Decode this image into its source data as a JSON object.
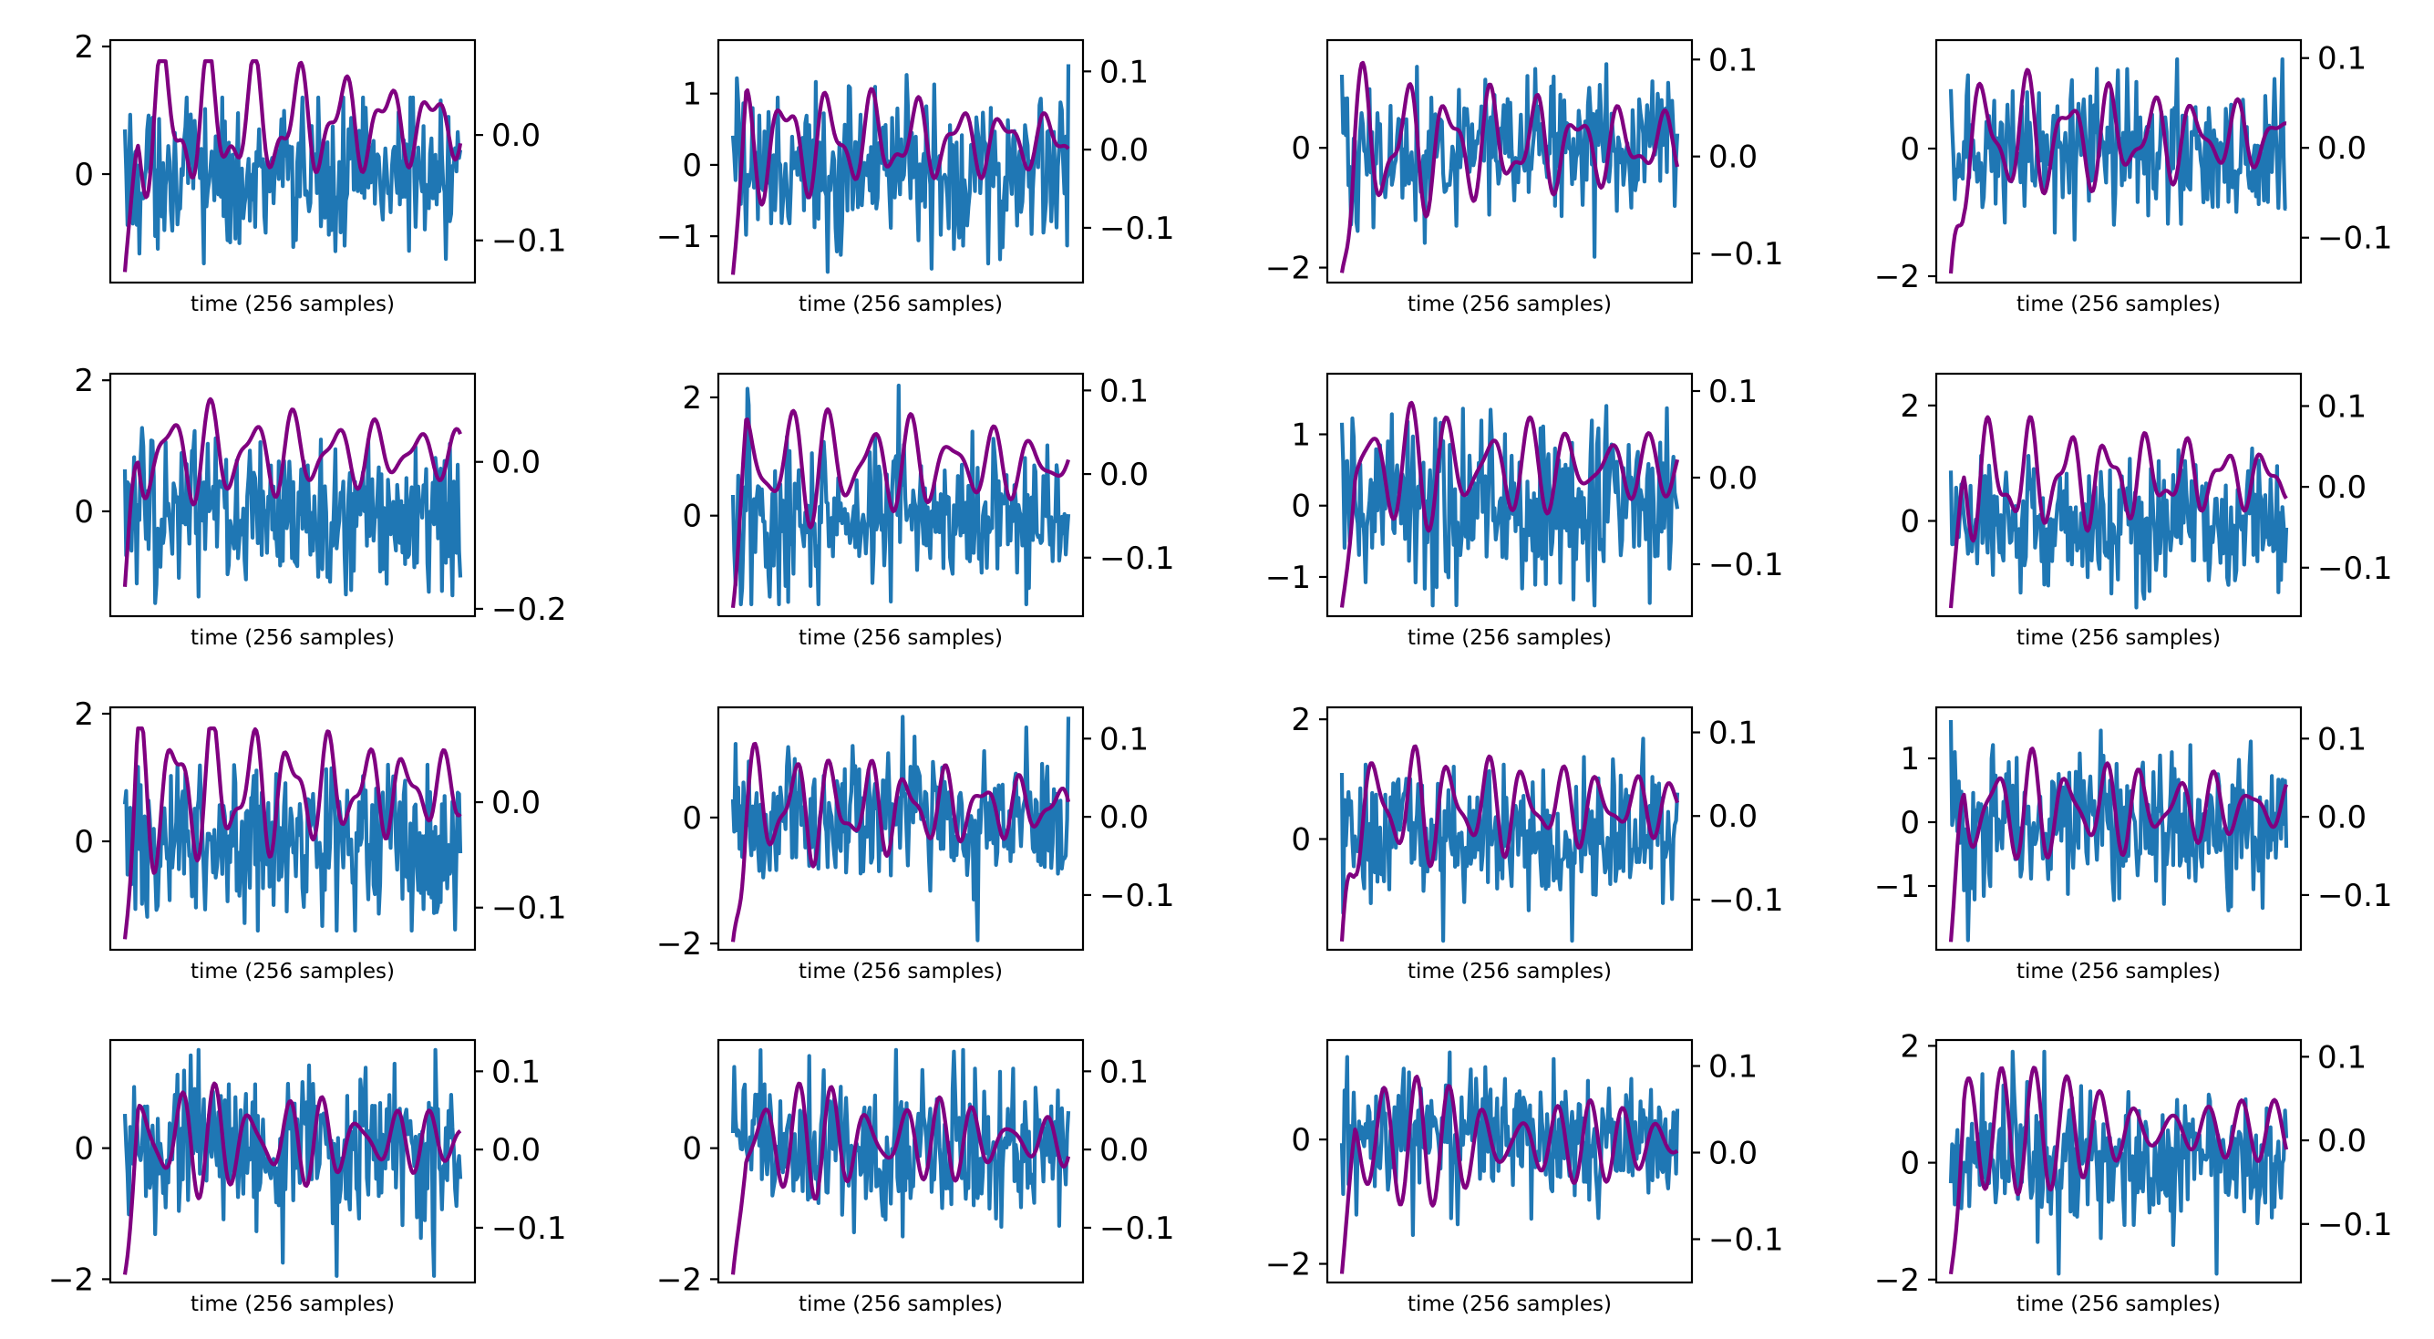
{
  "figure": {
    "rows": 4,
    "cols": 4,
    "n_samples": 256,
    "colors": {
      "signal": "#1f77b4",
      "smoothed": "#800080",
      "axes": "#000000"
    }
  },
  "chart_data": [
    {
      "type": "line",
      "xlabel": "time (256 samples)",
      "left_ticks": [
        {
          "v": 2,
          "label": "2"
        },
        {
          "v": 0,
          "label": "0"
        }
      ],
      "right_ticks": [
        {
          "v": 0,
          "label": "0.0"
        },
        {
          "v": -0.1,
          "label": "−0.1"
        }
      ],
      "left_ylim": [
        -1.7,
        2.1
      ],
      "right_ylim": [
        -0.14,
        0.09
      ],
      "series": [
        {
          "axis": "left",
          "amplitude": 0.6,
          "range": [
            -1.4,
            1.2
          ]
        },
        {
          "axis": "right",
          "range": [
            -0.13,
            0.07
          ]
        }
      ]
    },
    {
      "type": "line",
      "xlabel": "time (256 samples)",
      "left_ticks": [
        {
          "v": 1,
          "label": "1"
        },
        {
          "v": 0,
          "label": "0"
        },
        {
          "v": -1,
          "label": "−1"
        }
      ],
      "right_ticks": [
        {
          "v": 0.1,
          "label": "0.1"
        },
        {
          "v": 0,
          "label": "0.0"
        },
        {
          "v": -0.1,
          "label": "−0.1"
        }
      ],
      "left_ylim": [
        -1.65,
        1.75
      ],
      "right_ylim": [
        -0.17,
        0.14
      ],
      "series": [
        {
          "axis": "left",
          "amplitude": 0.6,
          "range": [
            -1.5,
            1.6
          ]
        },
        {
          "axis": "right",
          "range": [
            -0.16,
            0.13
          ]
        }
      ]
    },
    {
      "type": "line",
      "xlabel": "time (256 samples)",
      "left_ticks": [
        {
          "v": 0,
          "label": "0"
        },
        {
          "v": -2,
          "label": "−2"
        }
      ],
      "right_ticks": [
        {
          "v": 0.1,
          "label": "0.1"
        },
        {
          "v": 0,
          "label": "0.0"
        },
        {
          "v": -0.1,
          "label": "−0.1"
        }
      ],
      "left_ylim": [
        -2.25,
        1.8
      ],
      "right_ylim": [
        -0.13,
        0.12
      ],
      "series": [
        {
          "axis": "left",
          "amplitude": 0.6,
          "range": [
            -2.05,
            1.4
          ]
        },
        {
          "axis": "right",
          "range": [
            -0.12,
            0.11
          ]
        }
      ]
    },
    {
      "type": "line",
      "xlabel": "time (256 samples)",
      "left_ticks": [
        {
          "v": 0,
          "label": "0"
        },
        {
          "v": -2,
          "label": "−2"
        }
      ],
      "right_ticks": [
        {
          "v": 0.1,
          "label": "0.1"
        },
        {
          "v": 0,
          "label": "0.0"
        },
        {
          "v": -0.1,
          "label": "−0.1"
        }
      ],
      "left_ylim": [
        -2.1,
        1.7
      ],
      "right_ylim": [
        -0.15,
        0.12
      ],
      "series": [
        {
          "axis": "left",
          "amplitude": 0.6,
          "range": [
            -1.95,
            1.4
          ]
        },
        {
          "axis": "right",
          "range": [
            -0.14,
            0.11
          ]
        }
      ]
    },
    {
      "type": "line",
      "xlabel": "time (256 samples)",
      "left_ticks": [
        {
          "v": 2,
          "label": "2"
        },
        {
          "v": 0,
          "label": "0"
        }
      ],
      "right_ticks": [
        {
          "v": 0,
          "label": "0.0"
        },
        {
          "v": -0.2,
          "label": "−0.2"
        }
      ],
      "left_ylim": [
        -1.6,
        2.1
      ],
      "right_ylim": [
        -0.21,
        0.12
      ],
      "series": [
        {
          "axis": "left",
          "amplitude": 0.6,
          "range": [
            -1.4,
            1.6
          ]
        },
        {
          "axis": "right",
          "range": [
            -0.17,
            0.11
          ]
        }
      ]
    },
    {
      "type": "line",
      "xlabel": "time (256 samples)",
      "left_ticks": [
        {
          "v": 2,
          "label": "2"
        },
        {
          "v": 0,
          "label": "0"
        }
      ],
      "right_ticks": [
        {
          "v": 0.1,
          "label": "0.1"
        },
        {
          "v": 0,
          "label": "0.0"
        },
        {
          "v": -0.1,
          "label": "−0.1"
        }
      ],
      "left_ylim": [
        -1.7,
        2.4
      ],
      "right_ylim": [
        -0.17,
        0.12
      ],
      "series": [
        {
          "axis": "left",
          "amplitude": 0.6,
          "range": [
            -1.5,
            2.2
          ]
        },
        {
          "axis": "right",
          "range": [
            -0.16,
            0.11
          ]
        }
      ]
    },
    {
      "type": "line",
      "xlabel": "time (256 samples)",
      "left_ticks": [
        {
          "v": 1,
          "label": "1"
        },
        {
          "v": 0,
          "label": "0"
        },
        {
          "v": -1,
          "label": "−1"
        }
      ],
      "right_ticks": [
        {
          "v": 0.1,
          "label": "0.1"
        },
        {
          "v": 0,
          "label": "0.0"
        },
        {
          "v": -0.1,
          "label": "−0.1"
        }
      ],
      "left_ylim": [
        -1.55,
        1.85
      ],
      "right_ylim": [
        -0.16,
        0.12
      ],
      "series": [
        {
          "axis": "left",
          "amplitude": 0.6,
          "range": [
            -1.4,
            1.6
          ]
        },
        {
          "axis": "right",
          "range": [
            -0.15,
            0.11
          ]
        }
      ]
    },
    {
      "type": "line",
      "xlabel": "time (256 samples)",
      "left_ticks": [
        {
          "v": 2,
          "label": "2"
        },
        {
          "v": 0,
          "label": "0"
        }
      ],
      "right_ticks": [
        {
          "v": 0.1,
          "label": "0.1"
        },
        {
          "v": 0,
          "label": "0.0"
        },
        {
          "v": -0.1,
          "label": "−0.1"
        }
      ],
      "left_ylim": [
        -1.65,
        2.55
      ],
      "right_ylim": [
        -0.16,
        0.14
      ],
      "series": [
        {
          "axis": "left",
          "amplitude": 0.6,
          "range": [
            -1.5,
            1.9
          ]
        },
        {
          "axis": "right",
          "range": [
            -0.15,
            0.13
          ]
        }
      ]
    },
    {
      "type": "line",
      "xlabel": "time (256 samples)",
      "left_ticks": [
        {
          "v": 2,
          "label": "2"
        },
        {
          "v": 0,
          "label": "0"
        }
      ],
      "right_ticks": [
        {
          "v": 0,
          "label": "0.0"
        },
        {
          "v": -0.1,
          "label": "−0.1"
        }
      ],
      "left_ylim": [
        -1.7,
        2.1
      ],
      "right_ylim": [
        -0.14,
        0.09
      ],
      "series": [
        {
          "axis": "left",
          "amplitude": 0.6,
          "range": [
            -1.4,
            1.2
          ]
        },
        {
          "axis": "right",
          "range": [
            -0.13,
            0.07
          ]
        }
      ]
    },
    {
      "type": "line",
      "xlabel": "time (256 samples)",
      "left_ticks": [
        {
          "v": 0,
          "label": "0"
        },
        {
          "v": -2,
          "label": "−2"
        }
      ],
      "right_ticks": [
        {
          "v": 0.1,
          "label": "0.1"
        },
        {
          "v": 0,
          "label": "0.0"
        },
        {
          "v": -0.1,
          "label": "−0.1"
        }
      ],
      "left_ylim": [
        -2.1,
        1.75
      ],
      "right_ylim": [
        -0.17,
        0.14
      ],
      "series": [
        {
          "axis": "left",
          "amplitude": 0.6,
          "range": [
            -1.95,
            1.6
          ]
        },
        {
          "axis": "right",
          "range": [
            -0.16,
            0.13
          ]
        }
      ]
    },
    {
      "type": "line",
      "xlabel": "time (256 samples)",
      "left_ticks": [
        {
          "v": 2,
          "label": "2"
        },
        {
          "v": 0,
          "label": "0"
        }
      ],
      "right_ticks": [
        {
          "v": 0.1,
          "label": "0.1"
        },
        {
          "v": 0,
          "label": "0.0"
        },
        {
          "v": -0.1,
          "label": "−0.1"
        }
      ],
      "left_ylim": [
        -1.85,
        2.2
      ],
      "right_ylim": [
        -0.16,
        0.13
      ],
      "series": [
        {
          "axis": "left",
          "amplitude": 0.6,
          "range": [
            -1.7,
            2.0
          ]
        },
        {
          "axis": "right",
          "range": [
            -0.15,
            0.12
          ]
        }
      ]
    },
    {
      "type": "line",
      "xlabel": "time (256 samples)",
      "left_ticks": [
        {
          "v": 1,
          "label": "1"
        },
        {
          "v": 0,
          "label": "0"
        },
        {
          "v": -1,
          "label": "−1"
        }
      ],
      "right_ticks": [
        {
          "v": 0.1,
          "label": "0.1"
        },
        {
          "v": 0,
          "label": "0.0"
        },
        {
          "v": -0.1,
          "label": "−0.1"
        }
      ],
      "left_ylim": [
        -2.0,
        1.8
      ],
      "right_ylim": [
        -0.17,
        0.14
      ],
      "series": [
        {
          "axis": "left",
          "amplitude": 0.6,
          "range": [
            -1.85,
            1.6
          ]
        },
        {
          "axis": "right",
          "range": [
            -0.16,
            0.13
          ]
        }
      ]
    },
    {
      "type": "line",
      "xlabel": "time (256 samples)",
      "left_ticks": [
        {
          "v": 0,
          "label": "0"
        },
        {
          "v": -2,
          "label": "−2"
        }
      ],
      "right_ticks": [
        {
          "v": 0.1,
          "label": "0.1"
        },
        {
          "v": 0,
          "label": "0.0"
        },
        {
          "v": -0.1,
          "label": "−0.1"
        }
      ],
      "left_ylim": [
        -2.05,
        1.65
      ],
      "right_ylim": [
        -0.17,
        0.14
      ],
      "series": [
        {
          "axis": "left",
          "amplitude": 0.6,
          "range": [
            -1.95,
            1.5
          ]
        },
        {
          "axis": "right",
          "range": [
            -0.16,
            0.13
          ]
        }
      ]
    },
    {
      "type": "line",
      "xlabel": "time (256 samples)",
      "left_ticks": [
        {
          "v": 0,
          "label": "0"
        },
        {
          "v": -2,
          "label": "−2"
        }
      ],
      "right_ticks": [
        {
          "v": 0.1,
          "label": "0.1"
        },
        {
          "v": 0,
          "label": "0.0"
        },
        {
          "v": -0.1,
          "label": "−0.1"
        }
      ],
      "left_ylim": [
        -2.05,
        1.65
      ],
      "right_ylim": [
        -0.17,
        0.14
      ],
      "series": [
        {
          "axis": "left",
          "amplitude": 0.6,
          "range": [
            -1.95,
            1.5
          ]
        },
        {
          "axis": "right",
          "range": [
            -0.16,
            0.13
          ]
        }
      ]
    },
    {
      "type": "line",
      "xlabel": "time (256 samples)",
      "left_ticks": [
        {
          "v": 0,
          "label": "0"
        },
        {
          "v": -2,
          "label": "−2"
        }
      ],
      "right_ticks": [
        {
          "v": 0.1,
          "label": "0.1"
        },
        {
          "v": 0,
          "label": "0.0"
        },
        {
          "v": -0.1,
          "label": "−0.1"
        }
      ],
      "left_ylim": [
        -2.3,
        1.6
      ],
      "right_ylim": [
        -0.15,
        0.13
      ],
      "series": [
        {
          "axis": "left",
          "amplitude": 0.6,
          "range": [
            -2.2,
            1.4
          ]
        },
        {
          "axis": "right",
          "range": [
            -0.14,
            0.12
          ]
        }
      ]
    },
    {
      "type": "line",
      "xlabel": "time (256 samples)",
      "left_ticks": [
        {
          "v": 2,
          "label": "2"
        },
        {
          "v": 0,
          "label": "0"
        },
        {
          "v": -2,
          "label": "−2"
        }
      ],
      "right_ticks": [
        {
          "v": 0.1,
          "label": "0.1"
        },
        {
          "v": 0,
          "label": "0.0"
        },
        {
          "v": -0.1,
          "label": "−0.1"
        }
      ],
      "left_ylim": [
        -2.05,
        2.1
      ],
      "right_ylim": [
        -0.17,
        0.12
      ],
      "series": [
        {
          "axis": "left",
          "amplitude": 0.6,
          "range": [
            -1.9,
            1.9
          ]
        },
        {
          "axis": "right",
          "range": [
            -0.16,
            0.11
          ]
        }
      ]
    }
  ]
}
